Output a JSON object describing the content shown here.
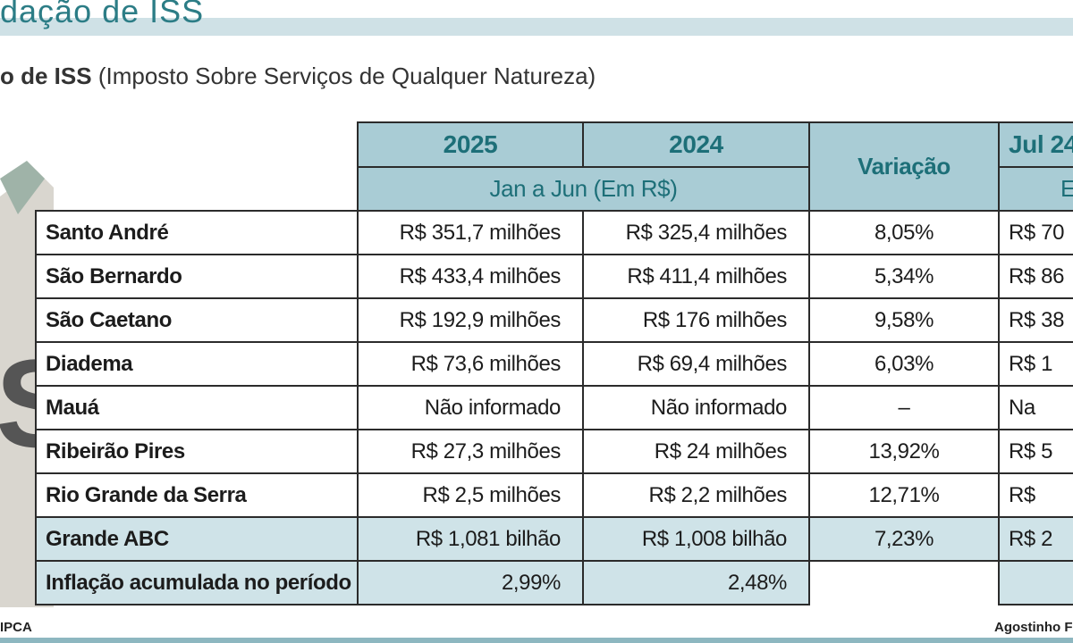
{
  "header": {
    "title": "dação de ISS",
    "subtitle_bold": "o de ISS",
    "subtitle": "(Imposto Sobre Serviços de Qualquer Natureza)"
  },
  "table": {
    "columns": [
      "2025",
      "2024",
      "Variação",
      "Jul 24"
    ],
    "period": "Jan a Jun (Em R$)",
    "last_sub": "E",
    "rows": [
      [
        "Santo André",
        "R$ 351,7 milhões",
        "R$ 325,4 milhões",
        "8,05%",
        "R$ 70"
      ],
      [
        "São Bernardo",
        "R$ 433,4  milhões",
        "R$ 411,4 milhões",
        "5,34%",
        "R$ 86"
      ],
      [
        "São Caetano",
        "R$ 192,9  milhões",
        "R$ 176  milhões",
        "9,58%",
        "R$ 38"
      ],
      [
        "Diadema",
        "R$ 73,6  milhões",
        "R$ 69,4 milhões",
        "6,03%",
        "R$ 1"
      ],
      [
        "Mauá",
        "Não informado",
        "Não informado",
        "–",
        "Na"
      ],
      [
        "Ribeirão Pires",
        "R$ 27,3  milhões",
        "R$ 24  milhões",
        "13,92%",
        "R$ 5"
      ],
      [
        "Rio Grande da Serra",
        "R$ 2,5  milhões",
        "R$ 2,2  milhões",
        "12,71%",
        "R$"
      ],
      [
        "Grande ABC",
        "R$ 1,081 bilhão",
        "R$ 1,008 bilhão",
        "7,23%",
        "R$ 2"
      ],
      [
        "Inflação acumulada no período",
        "2,99%",
        "2,48%"
      ]
    ]
  },
  "footer": {
    "source": "IPCA",
    "credit": "Agostinho Fr"
  }
}
